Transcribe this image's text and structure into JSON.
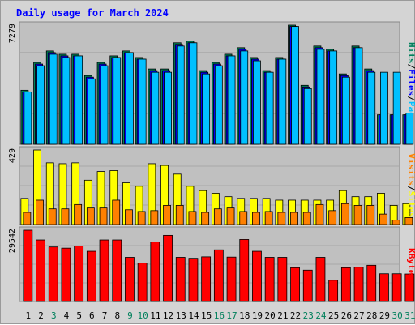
{
  "chart_data": [
    {
      "panel": "hits",
      "type": "bar",
      "title": "Daily usage for March 2024",
      "categories": [
        "1",
        "2",
        "3",
        "4",
        "5",
        "6",
        "7",
        "8",
        "9",
        "10",
        "11",
        "12",
        "13",
        "14",
        "15",
        "16",
        "17",
        "18",
        "19",
        "20",
        "21",
        "22",
        "23",
        "24",
        "25",
        "26",
        "27",
        "28",
        "29",
        "30",
        "31"
      ],
      "weekend_days": [
        "3",
        "9",
        "10",
        "16",
        "17",
        "23",
        "24",
        "30",
        "31"
      ],
      "ymax_label": "7279",
      "ylim": [
        0,
        7279
      ],
      "ylabel_parts": [
        "Hits",
        "Files",
        "Pages"
      ],
      "series": [
        {
          "name": "Hits",
          "color": "#00805c",
          "values": [
            3300,
            5000,
            5700,
            5500,
            5500,
            4200,
            5000,
            5400,
            5700,
            5300,
            4600,
            4600,
            6200,
            6300,
            4500,
            5000,
            5500,
            5900,
            5300,
            4500,
            5300,
            7279,
            3600,
            6000,
            5800,
            4300,
            6000,
            4600,
            1800,
            1800,
            1800
          ]
        },
        {
          "name": "Files",
          "color": "#0000ff",
          "values": [
            3200,
            4900,
            5600,
            5400,
            5400,
            4100,
            4900,
            5300,
            5600,
            5200,
            4500,
            4500,
            6100,
            6200,
            4400,
            4900,
            5400,
            5800,
            5200,
            4400,
            5200,
            7200,
            3500,
            5900,
            5700,
            4200,
            5900,
            4500,
            1800,
            1800,
            1800
          ]
        },
        {
          "name": "Pages",
          "color": "#00c0ff",
          "values": [
            3200,
            4800,
            5500,
            5300,
            5400,
            4000,
            4800,
            5300,
            5600,
            5200,
            4400,
            4400,
            6000,
            6200,
            4300,
            4800,
            5400,
            5700,
            5100,
            4400,
            5200,
            7200,
            3400,
            5800,
            5700,
            4100,
            5900,
            4400,
            4400,
            4400,
            1900
          ]
        }
      ]
    },
    {
      "panel": "visits",
      "type": "bar",
      "categories": [
        "1",
        "2",
        "3",
        "4",
        "5",
        "6",
        "7",
        "8",
        "9",
        "10",
        "11",
        "12",
        "13",
        "14",
        "15",
        "16",
        "17",
        "18",
        "19",
        "20",
        "21",
        "22",
        "23",
        "24",
        "25",
        "26",
        "27",
        "28",
        "29",
        "30",
        "31"
      ],
      "ymax_label": "429",
      "ylim": [
        0,
        429
      ],
      "ylabel_parts": [
        "Visits",
        "Sites"
      ],
      "series": [
        {
          "name": "Visits",
          "color": "#ffff00",
          "values": [
            150,
            429,
            355,
            350,
            355,
            255,
            305,
            310,
            240,
            220,
            350,
            340,
            290,
            220,
            195,
            180,
            160,
            150,
            150,
            150,
            140,
            140,
            140,
            140,
            140,
            195,
            160,
            160,
            180,
            110,
            120
          ]
        },
        {
          "name": "Sites",
          "color": "#ff8000",
          "values": [
            70,
            140,
            90,
            90,
            115,
            95,
            95,
            140,
            85,
            75,
            80,
            110,
            110,
            75,
            70,
            90,
            95,
            75,
            70,
            75,
            70,
            70,
            70,
            115,
            80,
            120,
            110,
            110,
            60,
            25,
            40
          ]
        }
      ]
    },
    {
      "panel": "kbytes",
      "type": "bar",
      "categories": [
        "1",
        "2",
        "3",
        "4",
        "5",
        "6",
        "7",
        "8",
        "9",
        "10",
        "11",
        "12",
        "13",
        "14",
        "15",
        "16",
        "17",
        "18",
        "19",
        "20",
        "21",
        "22",
        "23",
        "24",
        "25",
        "26",
        "27",
        "28",
        "29",
        "30",
        "31"
      ],
      "ymax_label": "29542",
      "ylim": [
        0,
        29542
      ],
      "ylabel_parts": [
        "KBytes"
      ],
      "series": [
        {
          "name": "KBytes",
          "color": "#ff0000",
          "values": [
            29542,
            25500,
            22600,
            22100,
            23000,
            20800,
            25500,
            25500,
            18300,
            15900,
            24700,
            27400,
            18300,
            17900,
            18500,
            21400,
            18400,
            25700,
            20800,
            18300,
            18300,
            14000,
            13000,
            18300,
            8800,
            14000,
            14200,
            15000,
            11500,
            11500,
            11400
          ]
        }
      ]
    }
  ],
  "colors": {
    "background": "#d4d4d4",
    "plot_background": "#c0c0c0",
    "title": "#0000ff",
    "weekend_label": "#00805c",
    "weekday_label": "#000000"
  }
}
